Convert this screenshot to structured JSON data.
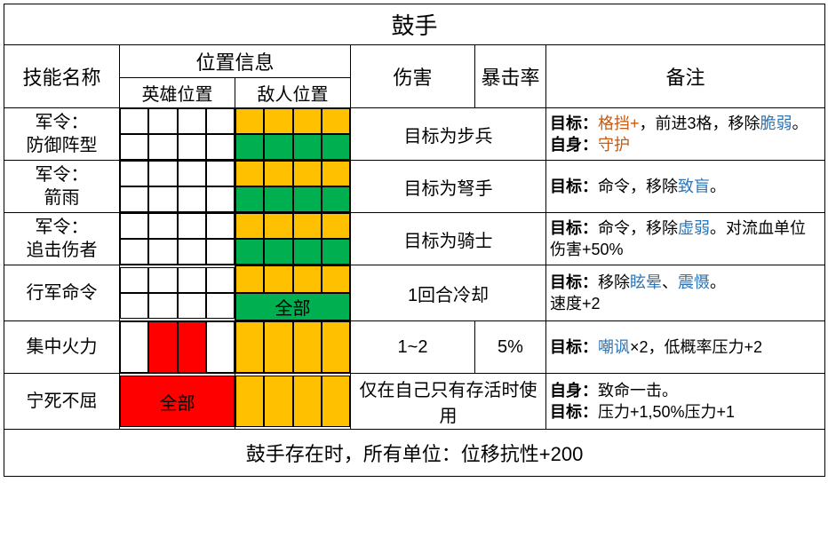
{
  "title": "鼓手",
  "headers": {
    "skill_name": "技能名称",
    "position_info": "位置信息",
    "hero_pos": "英雄位置",
    "enemy_pos": "敌人位置",
    "damage": "伤害",
    "crit": "暴击率",
    "notes": "备注"
  },
  "colors": {
    "white": "#ffffff",
    "orange": "#ffc000",
    "green": "#00b050",
    "red": "#ff0000",
    "keyword_blue": "#2e75b6",
    "keyword_orange": "#c55a11",
    "border": "#000000"
  },
  "skills": [
    {
      "name_line1": "军令：",
      "name_line2": "防御阵型",
      "hero_grid": {
        "rows": 2,
        "cells": [
          "w",
          "w",
          "w",
          "w",
          "w",
          "w",
          "w",
          "w"
        ]
      },
      "enemy_grid": {
        "rows": 2,
        "cells": [
          "o",
          "o",
          "o",
          "o",
          "g",
          "g",
          "g",
          "g"
        ]
      },
      "damage": "目标为步兵",
      "crit": "",
      "notes_parts": [
        {
          "t": "目标：",
          "b": true
        },
        {
          "t": "格挡+",
          "c": "kw-alt"
        },
        {
          "t": "，前进3格，移除"
        },
        {
          "t": "脆弱",
          "c": "kw"
        },
        {
          "t": "。"
        },
        {
          "t": "自身：",
          "b": true
        },
        {
          "t": "守护",
          "c": "kw-alt"
        }
      ]
    },
    {
      "name_line1": "军令：",
      "name_line2": "箭雨",
      "hero_grid": {
        "rows": 2,
        "cells": [
          "w",
          "w",
          "w",
          "w",
          "w",
          "w",
          "w",
          "w"
        ]
      },
      "enemy_grid": {
        "rows": 2,
        "cells": [
          "o",
          "o",
          "o",
          "o",
          "g",
          "g",
          "g",
          "g"
        ]
      },
      "damage": "目标为弩手",
      "crit": "",
      "notes_parts": [
        {
          "t": "目标：",
          "b": true
        },
        {
          "t": "命令，移除"
        },
        {
          "t": "致盲",
          "c": "kw"
        },
        {
          "t": "。"
        }
      ]
    },
    {
      "name_line1": "军令：",
      "name_line2": "追击伤者",
      "hero_grid": {
        "rows": 2,
        "cells": [
          "w",
          "w",
          "w",
          "w",
          "w",
          "w",
          "w",
          "w"
        ]
      },
      "enemy_grid": {
        "rows": 2,
        "cells": [
          "o",
          "o",
          "o",
          "o",
          "g",
          "g",
          "g",
          "g"
        ]
      },
      "damage": "目标为骑士",
      "crit": "",
      "notes_parts": [
        {
          "t": "目标：",
          "b": true
        },
        {
          "t": "命令，移除"
        },
        {
          "t": "虚弱",
          "c": "kw"
        },
        {
          "t": "。对流血单位伤害+50%"
        }
      ]
    },
    {
      "name_line1": "行军命令",
      "name_line2": "",
      "hero_grid": {
        "rows": 2,
        "cells": [
          "w",
          "w",
          "w",
          "w",
          "w",
          "w",
          "w",
          "w"
        ]
      },
      "enemy_grid": {
        "rows": 2,
        "cells": [
          "o",
          "o",
          "o",
          "o"
        ],
        "row2_full": "全部",
        "row2_bg": "g"
      },
      "damage": "1回合冷却",
      "crit": "",
      "notes_parts": [
        {
          "t": "目标：",
          "b": true
        },
        {
          "t": "移除"
        },
        {
          "t": "眩晕",
          "c": "kw"
        },
        {
          "t": "、"
        },
        {
          "t": "震慑",
          "c": "kw"
        },
        {
          "t": "。"
        },
        {
          "br": true
        },
        {
          "t": "速度+2"
        }
      ]
    },
    {
      "name_line1": "集中火力",
      "name_line2": "",
      "hero_grid": {
        "rows": 1,
        "cells": [
          "w",
          "r",
          "r",
          "w"
        ]
      },
      "enemy_grid": {
        "rows": 1,
        "cells": [
          "o",
          "o",
          "o",
          "o"
        ]
      },
      "damage": "1~2",
      "crit": "5%",
      "notes_parts": [
        {
          "t": "目标：",
          "b": true
        },
        {
          "t": "嘲讽",
          "c": "kw"
        },
        {
          "t": "×2，低概率压力+2"
        }
      ]
    },
    {
      "name_line1": "宁死不屈",
      "name_line2": "",
      "hero_grid": {
        "rows": 1,
        "full": "全部",
        "full_bg": "r"
      },
      "enemy_grid": {
        "rows": 1,
        "cells": [
          "o",
          "o",
          "o",
          "o"
        ]
      },
      "damage": "仅在自己只有存活时使用",
      "crit": "",
      "notes_parts": [
        {
          "t": "自身：",
          "b": true
        },
        {
          "t": "致命一击。"
        },
        {
          "br": true
        },
        {
          "t": "目标：",
          "b": true
        },
        {
          "t": "压力+1,50%压力+1"
        }
      ]
    }
  ],
  "passive": "鼓手存在时，所有单位：位移抗性+200"
}
